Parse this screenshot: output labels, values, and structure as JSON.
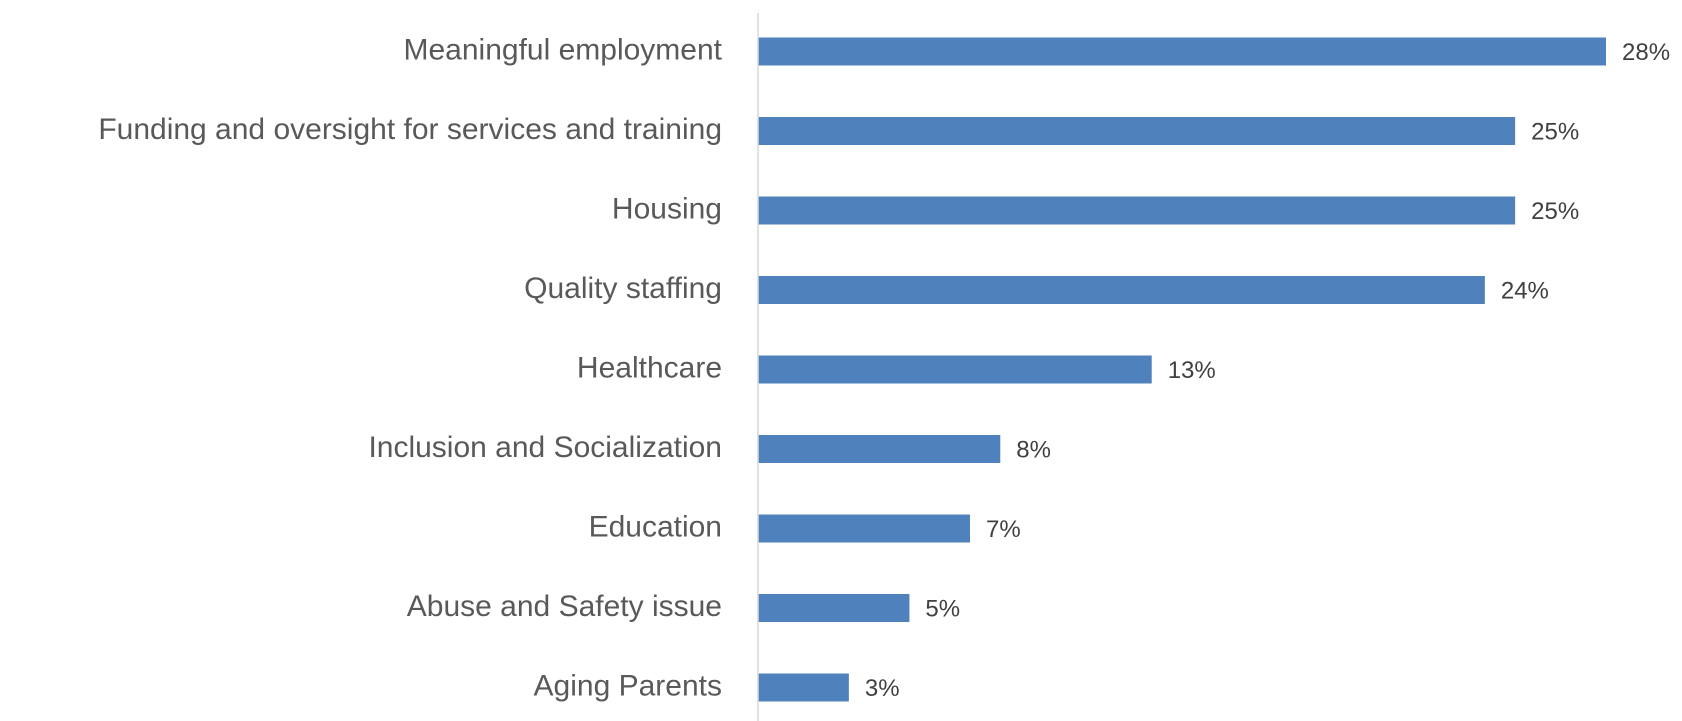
{
  "chart_data": {
    "type": "bar",
    "orientation": "horizontal",
    "categories": [
      "Meaningful employment",
      "Funding and oversight for services and training",
      "Housing",
      "Quality staffing",
      "Healthcare",
      "Inclusion and Socialization",
      "Education",
      "Abuse and Safety issue",
      "Aging Parents"
    ],
    "values": [
      28,
      25,
      25,
      24,
      13,
      8,
      7,
      5,
      3
    ],
    "value_labels": [
      "28%",
      "25%",
      "25%",
      "24%",
      "13%",
      "8%",
      "7%",
      "5%",
      "3%"
    ],
    "color": "#4f81bd"
  }
}
